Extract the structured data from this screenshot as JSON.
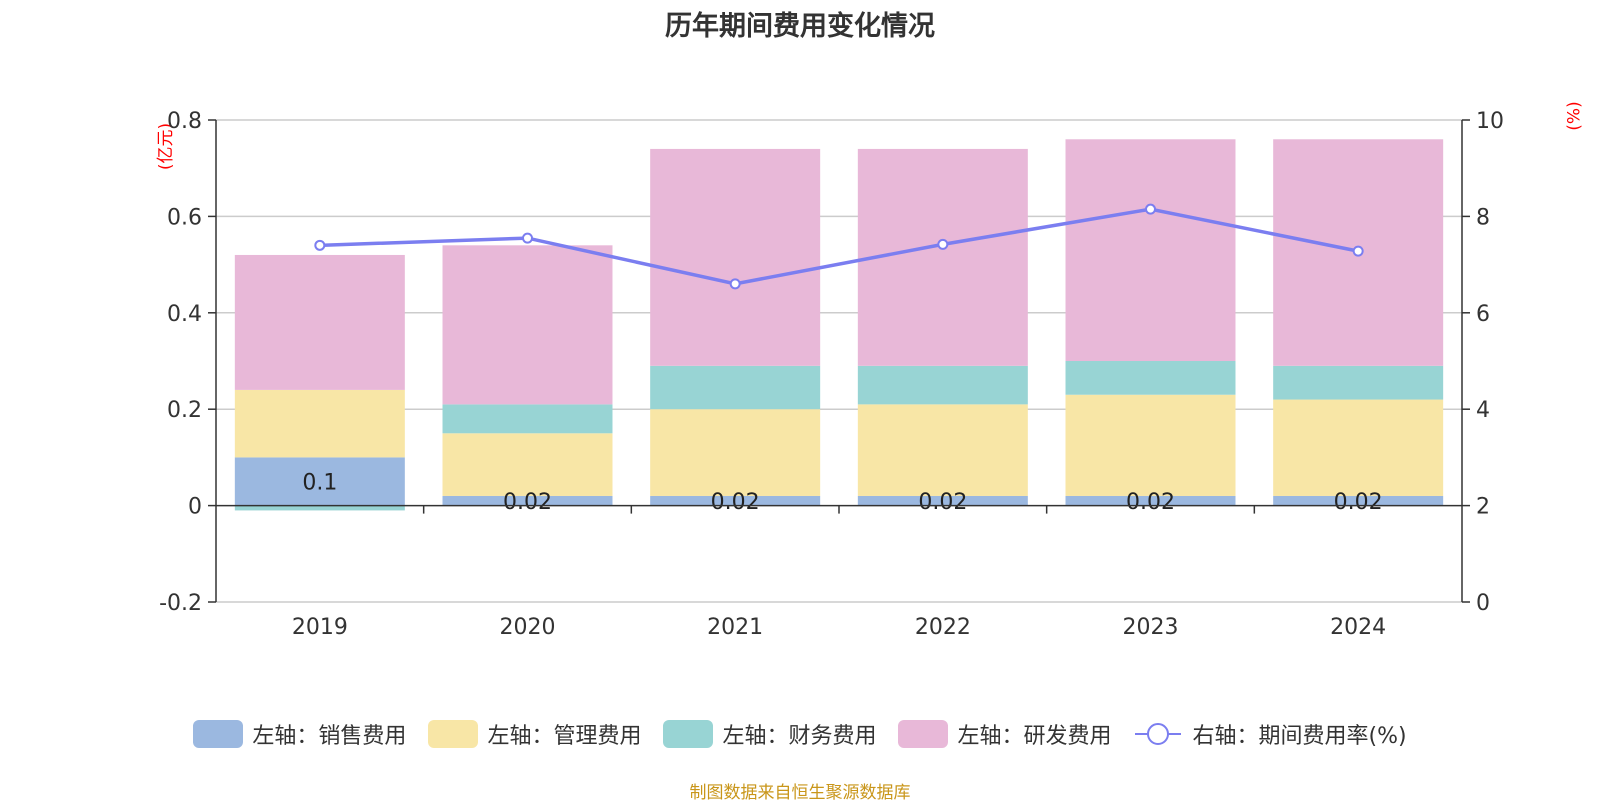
{
  "chart_data": {
    "type": "bar",
    "stacked": true,
    "title": "历年期间费用变化情况",
    "left_unit": "(亿元)",
    "right_unit": "(%)",
    "categories": [
      "2019",
      "2020",
      "2021",
      "2022",
      "2023",
      "2024"
    ],
    "ylim_left": [
      -0.2,
      0.8
    ],
    "yticks_left": [
      -0.2,
      0,
      0.2,
      0.4,
      0.6,
      0.8
    ],
    "ytick_labels_left": [
      "-0.2",
      "0",
      "0.2",
      "0.4",
      "0.6",
      "0.8"
    ],
    "ylim_right": [
      0,
      10
    ],
    "yticks_right": [
      0,
      2,
      4,
      6,
      8,
      10
    ],
    "ytick_labels_right": [
      "0",
      "2",
      "4",
      "6",
      "8",
      "10"
    ],
    "series": [
      {
        "name": "左轴：销售费用",
        "axis": "left",
        "color": "#9bb8e0",
        "values": [
          0.1,
          0.02,
          0.02,
          0.02,
          0.02,
          0.02
        ],
        "labels": [
          "0.1",
          "0.02",
          "0.02",
          "0.02",
          "0.02",
          "0.02"
        ]
      },
      {
        "name": "左轴：管理费用",
        "axis": "left",
        "color": "#f8e6a6",
        "values": [
          0.14,
          0.13,
          0.18,
          0.19,
          0.21,
          0.2
        ]
      },
      {
        "name": "左轴：财务费用",
        "axis": "left",
        "color": "#98d4d4",
        "values": [
          -0.01,
          0.06,
          0.09,
          0.08,
          0.07,
          0.07
        ]
      },
      {
        "name": "左轴：研发费用",
        "axis": "left",
        "color": "#e8b8d8",
        "values": [
          0.28,
          0.33,
          0.45,
          0.45,
          0.46,
          0.47
        ]
      }
    ],
    "line": {
      "name": "右轴：期间费用率(%)",
      "axis": "right",
      "color": "#7b7ef0",
      "values": [
        7.4,
        7.55,
        6.6,
        7.42,
        8.15,
        7.28
      ]
    }
  },
  "source": "制图数据来自恒生聚源数据库"
}
